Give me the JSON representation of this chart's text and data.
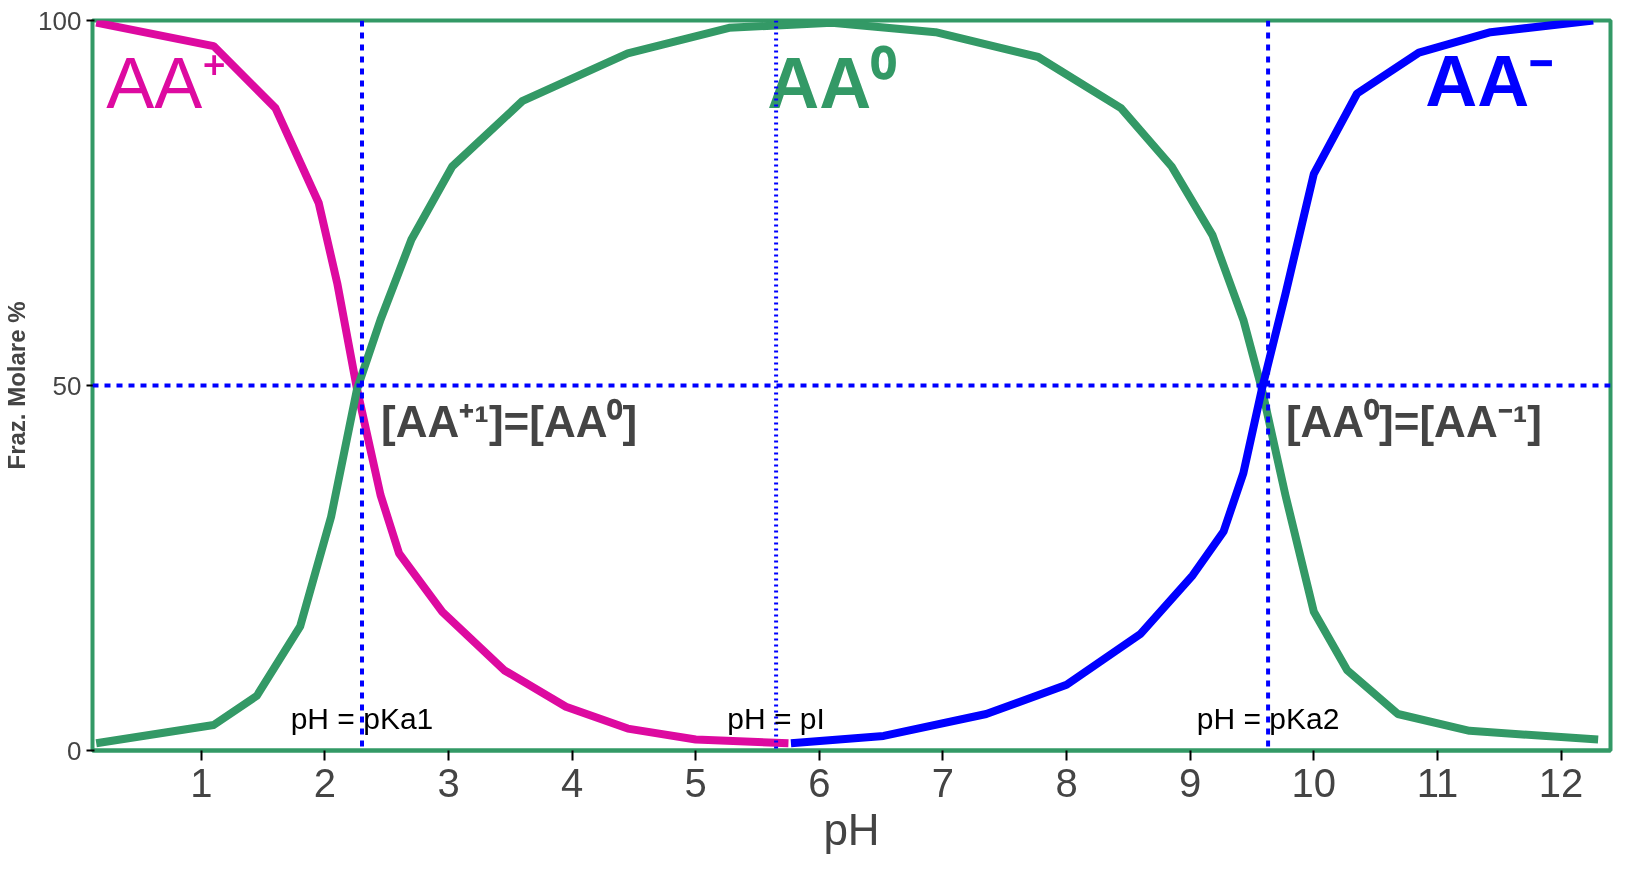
{
  "chart_data": {
    "type": "line",
    "xlabel": "pH",
    "ylabel": "Fraz. Molare %",
    "xlim": [
      0.12,
      12.4
    ],
    "ylim": [
      0,
      100
    ],
    "xticks": [
      1,
      2,
      3,
      4,
      5,
      6,
      7,
      8,
      9,
      10,
      11,
      12
    ],
    "yticks": [
      0,
      50,
      100
    ],
    "grid": false,
    "marker": "none",
    "line_style": "solid",
    "series": [
      {
        "name": "AA⁺",
        "color": "#dd0aa0",
        "x": [
          0.15,
          1.1,
          1.6,
          1.95,
          2.1,
          2.26,
          2.45,
          2.6,
          2.95,
          3.45,
          3.95,
          4.45,
          5.0,
          5.75
        ],
        "values": [
          99.7,
          96.5,
          88,
          75,
          64,
          49.5,
          35,
          27,
          19,
          11,
          6,
          3,
          1.5,
          1
        ]
      },
      {
        "name": "AA⁰",
        "color": "#339966",
        "x": [
          0.15,
          1.1,
          1.45,
          1.8,
          2.05,
          2.26,
          2.45,
          2.7,
          3.03,
          3.6,
          4.45,
          5.27,
          6.1,
          6.94,
          7.77,
          8.44,
          8.85,
          9.18,
          9.43,
          9.58,
          9.77,
          10.0,
          10.27,
          10.68,
          11.26,
          12.3
        ],
        "values": [
          1,
          3.5,
          7.5,
          17,
          32,
          49.5,
          59,
          70,
          80,
          89,
          95.5,
          99,
          99.7,
          98.4,
          95,
          88,
          80,
          70.6,
          59,
          49.5,
          35,
          19,
          11,
          5,
          2.7,
          1.5
        ]
      },
      {
        "name": "AA⁻",
        "color": "#0000ff",
        "x": [
          5.77,
          6.52,
          7.35,
          8.0,
          8.6,
          9.02,
          9.27,
          9.43,
          9.58,
          9.77,
          10.0,
          10.35,
          10.85,
          11.43,
          12.26
        ],
        "values": [
          1,
          2,
          5,
          9,
          16,
          24,
          30,
          38,
          49.5,
          62.5,
          79,
          90,
          95.6,
          98.4,
          100
        ]
      }
    ],
    "ref_lines": [
      {
        "axis": "y",
        "value": 50,
        "label": null,
        "color": "#0000ff",
        "line_style": "dashed"
      },
      {
        "axis": "x",
        "value": 2.3,
        "label": "pH = pKa1",
        "color": "#0000ff",
        "line_style": "dashed"
      },
      {
        "axis": "x",
        "value": 5.65,
        "label": "pH = pI",
        "color": "#0000ff",
        "line_style": "dotted"
      },
      {
        "axis": "x",
        "value": 9.63,
        "label": "pH = pKa2",
        "color": "#0000ff",
        "line_style": "dashed"
      }
    ],
    "annotations": [
      {
        "text": "[AA⁺¹]=[AA⁰]",
        "x": 2.26,
        "y": 49.5
      },
      {
        "text": "[AA⁰]=[AA⁻¹]",
        "x": 9.58,
        "y": 49.5
      }
    ]
  }
}
